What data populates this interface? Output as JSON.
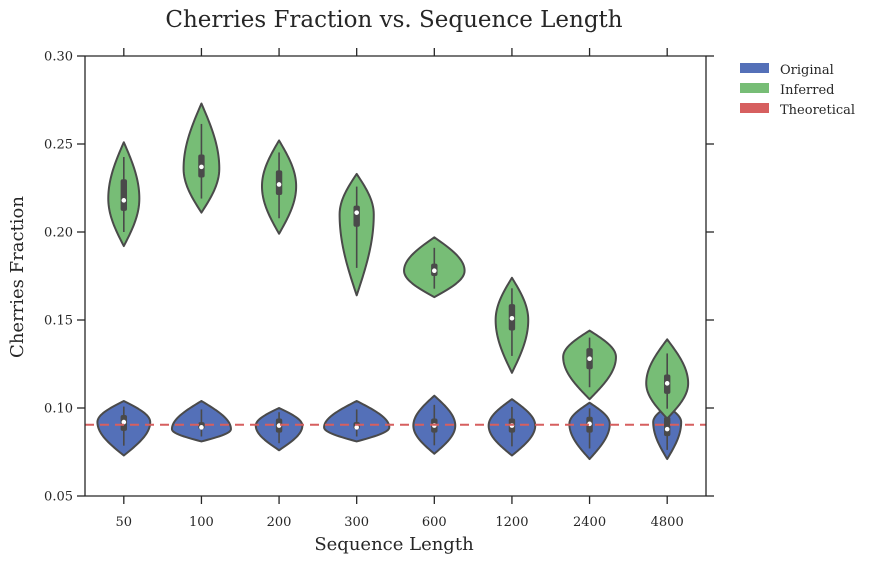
{
  "chart_data": {
    "type": "violin",
    "title": "Cherries Fraction vs. Sequence Length",
    "xlabel": "Sequence Length",
    "ylabel": "Cherries Fraction",
    "categories": [
      "50",
      "100",
      "200",
      "300",
      "600",
      "1200",
      "2400",
      "4800"
    ],
    "ylim": [
      0.05,
      0.3
    ],
    "yticks": [
      "0.05",
      "0.10",
      "0.15",
      "0.20",
      "0.25",
      "0.30"
    ],
    "grid": false,
    "legend_position": "outside-top-right",
    "series": [
      {
        "name": "Original",
        "color": "#5470b8",
        "min": [
          0.073,
          0.081,
          0.076,
          0.081,
          0.074,
          0.073,
          0.071,
          0.071
        ],
        "max": [
          0.104,
          0.104,
          0.1,
          0.104,
          0.107,
          0.105,
          0.103,
          0.101
        ],
        "q1": [
          0.087,
          0.088,
          0.086,
          0.088,
          0.086,
          0.086,
          0.086,
          0.084
        ],
        "median": [
          0.092,
          0.089,
          0.09,
          0.089,
          0.09,
          0.09,
          0.091,
          0.088
        ],
        "q3": [
          0.096,
          0.092,
          0.094,
          0.092,
          0.094,
          0.094,
          0.095,
          0.095
        ],
        "mode": [
          0.092,
          0.088,
          0.09,
          0.089,
          0.09,
          0.09,
          0.091,
          0.092
        ],
        "half_width": [
          0.34,
          0.38,
          0.3,
          0.42,
          0.27,
          0.3,
          0.26,
          0.18
        ]
      },
      {
        "name": "Inferred",
        "color": "#77bd76",
        "min": [
          0.192,
          0.211,
          0.199,
          0.164,
          0.163,
          0.12,
          0.105,
          0.094
        ],
        "max": [
          0.251,
          0.273,
          0.252,
          0.233,
          0.197,
          0.174,
          0.144,
          0.139
        ],
        "q1": [
          0.212,
          0.231,
          0.221,
          0.203,
          0.175,
          0.144,
          0.122,
          0.108
        ],
        "median": [
          0.218,
          0.237,
          0.227,
          0.211,
          0.178,
          0.151,
          0.128,
          0.114
        ],
        "q3": [
          0.23,
          0.244,
          0.235,
          0.215,
          0.182,
          0.159,
          0.134,
          0.119
        ],
        "mode": [
          0.219,
          0.236,
          0.226,
          0.21,
          0.178,
          0.15,
          0.129,
          0.114
        ],
        "half_width": [
          0.2,
          0.23,
          0.22,
          0.22,
          0.39,
          0.21,
          0.34,
          0.27
        ]
      }
    ],
    "reference_line": {
      "name": "Theoretical",
      "value": 0.0905,
      "color": "#d65f5f",
      "style": "dashed"
    }
  }
}
